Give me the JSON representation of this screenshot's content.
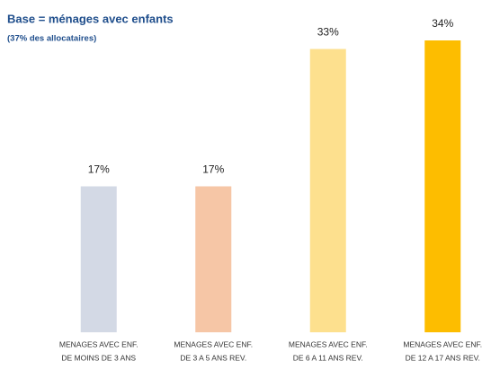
{
  "chart_data": {
    "type": "bar",
    "title": "Base = ménages avec enfants",
    "subtitle": "(37% des allocataires)",
    "categories": [
      [
        "MENAGES AVEC ENF.",
        "DE MOINS DE 3 ANS"
      ],
      [
        "MENAGES AVEC ENF.",
        "DE 3 A 5 ANS REV."
      ],
      [
        "MENAGES AVEC ENF.",
        "DE 6 A 11 ANS REV."
      ],
      [
        "MENAGES AVEC ENF.",
        "DE 12 A 17 ANS REV."
      ]
    ],
    "values": [
      17,
      17,
      33,
      34
    ],
    "value_labels": [
      "17%",
      "17%",
      "33%",
      "34%"
    ],
    "colors": [
      "#d3d9e5",
      "#f6c6a6",
      "#fde08e",
      "#fdbd00"
    ]
  }
}
